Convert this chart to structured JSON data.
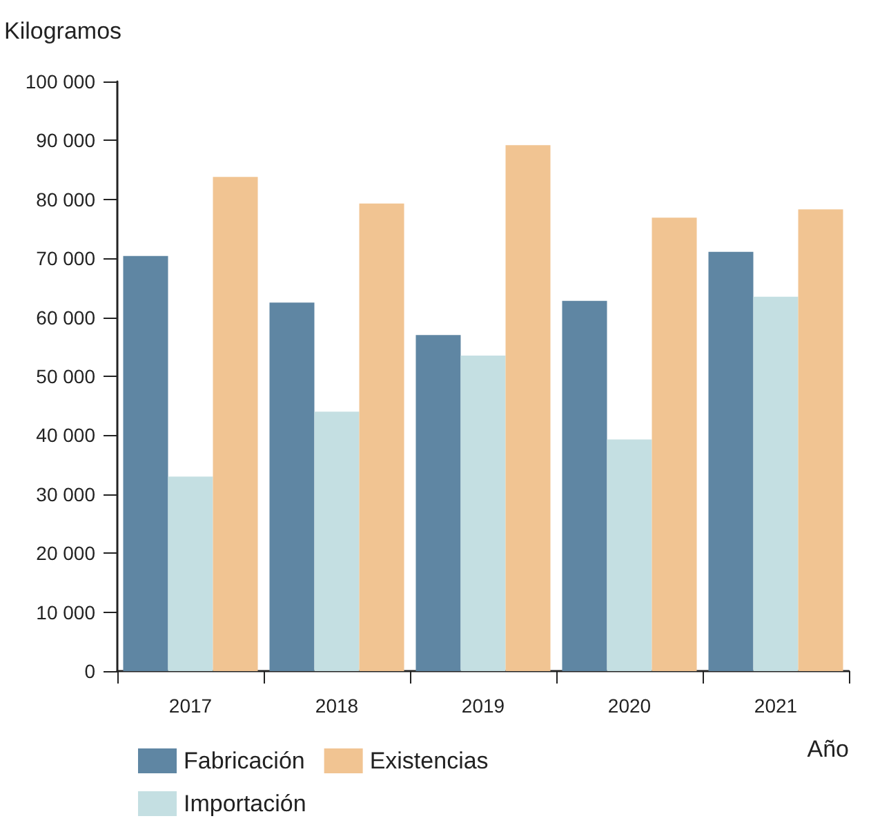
{
  "chart_data": {
    "type": "bar",
    "ylabel": "Kilogramos",
    "xlabel": "Año",
    "categories": [
      "2017",
      "2018",
      "2019",
      "2020",
      "2021"
    ],
    "series": [
      {
        "name": "Fabricación",
        "color": "#5f86a3",
        "values": [
          70400,
          62500,
          57000,
          62800,
          71100
        ]
      },
      {
        "name": "Importación",
        "color": "#c4dfe2",
        "values": [
          33000,
          44000,
          53500,
          39300,
          63500
        ]
      },
      {
        "name": "Existencias",
        "color": "#f1c492",
        "values": [
          83800,
          79300,
          89200,
          76900,
          78300
        ]
      }
    ],
    "ylim": [
      0,
      100000
    ],
    "yticks": [
      0,
      10000,
      20000,
      30000,
      40000,
      50000,
      60000,
      70000,
      80000,
      90000,
      100000
    ],
    "grid": false,
    "legend": "bottom"
  }
}
